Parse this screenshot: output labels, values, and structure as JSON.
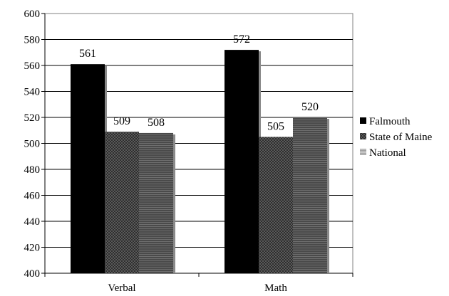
{
  "chart_data": {
    "type": "bar",
    "categories": [
      "Verbal",
      "Math"
    ],
    "series": [
      {
        "name": "Falmouth",
        "values": [
          561,
          572
        ],
        "color": "#000000",
        "pattern": "solid"
      },
      {
        "name": "State of Maine",
        "values": [
          509,
          505
        ],
        "color": "#444444",
        "pattern": "checker"
      },
      {
        "name": "National",
        "values": [
          508,
          520
        ],
        "color": "#4a4a4a",
        "pattern": "hstripe"
      }
    ],
    "ylim": [
      400,
      600
    ],
    "y_ticks": [
      400,
      420,
      440,
      460,
      480,
      500,
      520,
      540,
      560,
      580,
      600
    ],
    "grid": true,
    "legend_position": "right",
    "title": "",
    "xlabel": "",
    "ylabel": ""
  }
}
